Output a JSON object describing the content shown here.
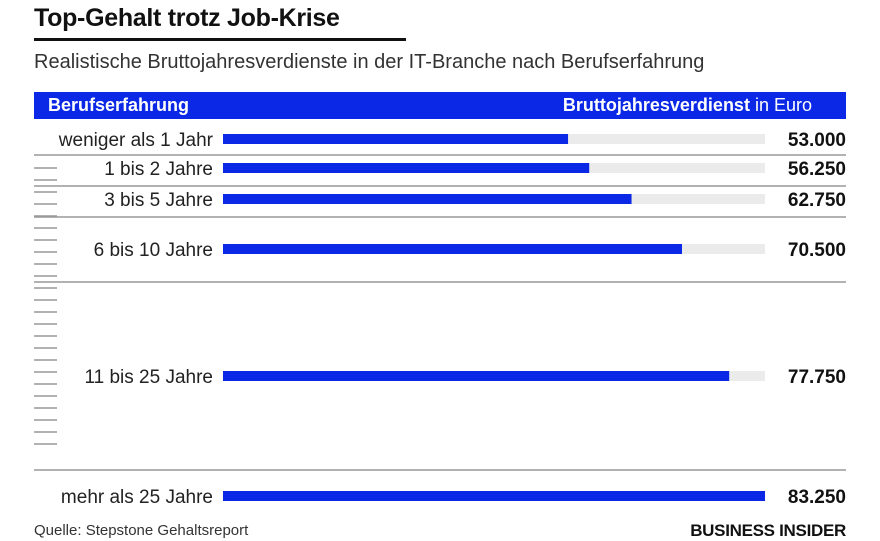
{
  "title": "Top-Gehalt trotz Job-Krise",
  "subtitle": "Realistische Bruttojahresverdienste in der IT-Branche nach Berufserfahrung",
  "header": {
    "left": "Berufserfahrung",
    "right_bold": "Bruttojahresverdienst",
    "right_suffix": " in Euro"
  },
  "source": "Quelle: Stepstone Gehaltsreport",
  "brand": "BUSINESS INSIDER",
  "colors": {
    "bar": "#0a28e6",
    "track": "#ebebeb",
    "divider": "#999999",
    "tick": "#999999"
  },
  "chart_data": {
    "type": "bar",
    "orientation": "horizontal",
    "categories": [
      "weniger als 1 Jahr",
      "1 bis 2 Jahre",
      "3 bis 5 Jahre",
      "6 bis 10 Jahre",
      "11 bis 25 Jahre",
      "mehr als 25 Jahre"
    ],
    "values": [
      53000,
      56250,
      62750,
      70500,
      77750,
      83250
    ],
    "value_labels": [
      "53.000",
      "56.250",
      "62.750",
      "70.500",
      "77.750",
      "83.250"
    ],
    "year_spans": [
      1,
      1,
      3,
      5,
      15,
      1
    ],
    "xlim": [
      0,
      83250
    ],
    "unit": "Euro"
  }
}
